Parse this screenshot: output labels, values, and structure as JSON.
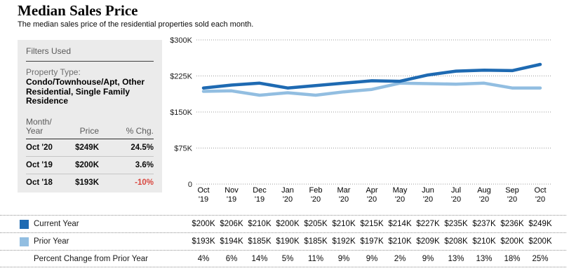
{
  "header": {
    "title": "Median Sales Price",
    "subtitle": "The median sales price of the residential properties sold each month."
  },
  "filters_panel": {
    "heading": "Filters Used",
    "property_type_label": "Property Type:",
    "property_type_value": "Condo/Townhouse/Apt, Other Residential, Single Family Residence"
  },
  "summary_table": {
    "columns": {
      "month": "Month/ Year",
      "price": "Price",
      "pct": "% Chg."
    },
    "rows": [
      {
        "month": "Oct '20",
        "price": "$249K",
        "pct": "24.5%",
        "negative": false
      },
      {
        "month": "Oct '19",
        "price": "$200K",
        "pct": "3.6%",
        "negative": false
      },
      {
        "month": "Oct '18",
        "price": "$193K",
        "pct": "-10%",
        "negative": true
      }
    ]
  },
  "chart_data": {
    "type": "line",
    "title": "Median Sales Price",
    "categories": [
      "Oct '19",
      "Nov '19",
      "Dec '19",
      "Jan '20",
      "Feb '20",
      "Mar '20",
      "Apr '20",
      "May '20",
      "Jun '20",
      "Jul '20",
      "Aug '20",
      "Sep '20",
      "Oct '20"
    ],
    "series": [
      {
        "name": "Prior Year",
        "color": "#92bee1",
        "values_k": [
          193,
          194,
          185,
          190,
          185,
          192,
          197,
          210,
          209,
          208,
          210,
          200,
          200
        ],
        "display": [
          "$193K",
          "$194K",
          "$185K",
          "$190K",
          "$185K",
          "$192K",
          "$197K",
          "$210K",
          "$209K",
          "$208K",
          "$210K",
          "$200K",
          "$200K"
        ]
      },
      {
        "name": "Current Year",
        "color": "#1e6ab2",
        "values_k": [
          200,
          206,
          210,
          200,
          205,
          210,
          215,
          214,
          227,
          235,
          237,
          236,
          249
        ],
        "display": [
          "$200K",
          "$206K",
          "$210K",
          "$200K",
          "$205K",
          "$210K",
          "$215K",
          "$214K",
          "$227K",
          "$235K",
          "$237K",
          "$236K",
          "$249K"
        ]
      }
    ],
    "percent_change": {
      "name": "Percent Change from Prior Year",
      "display": [
        "4%",
        "6%",
        "14%",
        "5%",
        "11%",
        "9%",
        "9%",
        "2%",
        "9%",
        "13%",
        "13%",
        "18%",
        "25%"
      ]
    },
    "yticks": [
      {
        "label": "$300K",
        "value": 300
      },
      {
        "label": "$225K",
        "value": 225
      },
      {
        "label": "$150K",
        "value": 150
      },
      {
        "label": "$75K",
        "value": 75
      },
      {
        "label": "0",
        "value": 0
      }
    ],
    "ylim_k": [
      0,
      300
    ],
    "grid": "dotted-horizontal",
    "legend_position": "bottom-table"
  },
  "colors": {
    "current_year": "#1e6ab2",
    "prior_year": "#92bee1",
    "negative": "#d9473f",
    "panel_bg": "#ebebeb"
  }
}
